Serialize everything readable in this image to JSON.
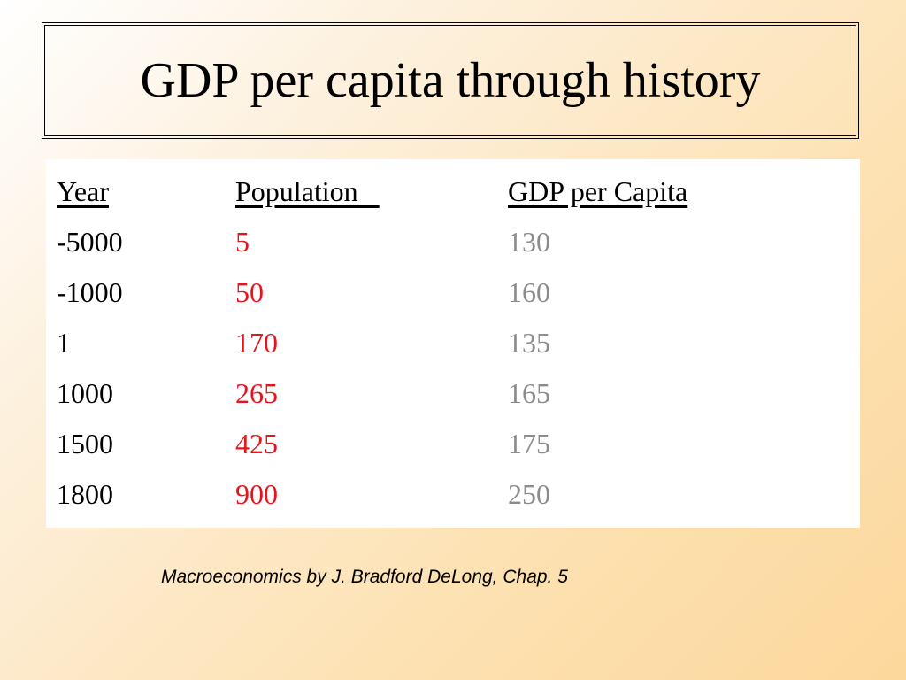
{
  "slide": {
    "title": "GDP per capita through history",
    "caption": "Macroeconomics by J. Bradford DeLong, Chap. 5"
  },
  "table": {
    "headers": {
      "year": "Year",
      "population": "Population   ",
      "gdp": "GDP per Capita"
    },
    "rows": [
      {
        "year": "-5000",
        "population": "5",
        "gdp": "130"
      },
      {
        "year": "-1000",
        "population": "50",
        "gdp": "160"
      },
      {
        "year": "1",
        "population": "170",
        "gdp": "135"
      },
      {
        "year": "1000",
        "population": "265",
        "gdp": "165"
      },
      {
        "year": "1500",
        "population": "425",
        "gdp": "175"
      },
      {
        "year": "1800",
        "population": "900",
        "gdp": "250"
      }
    ]
  },
  "colors": {
    "population_text": "#e8141c",
    "gdp_text": "#8c8c8c",
    "year_text": "#000000"
  }
}
